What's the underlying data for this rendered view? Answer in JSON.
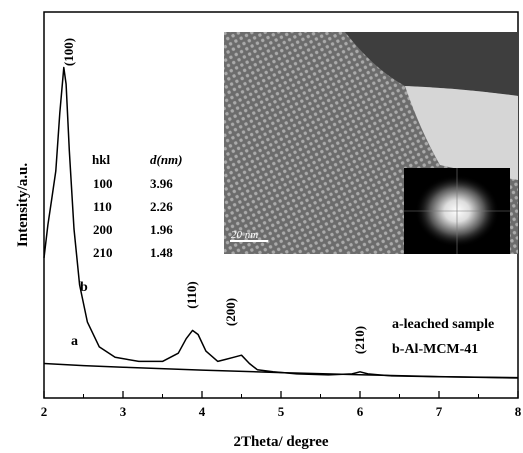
{
  "chart_data": {
    "type": "line",
    "xlabel": "2Theta/ degree",
    "ylabel": "Intensity/a.u.",
    "xlim": [
      2,
      8
    ],
    "x_ticks": [
      "2",
      "3",
      "4",
      "5",
      "6",
      "7",
      "8"
    ],
    "y_ticks_labeled": false,
    "grid": false,
    "series": [
      {
        "name": "b",
        "x": [
          2.0,
          2.05,
          2.1,
          2.15,
          2.2,
          2.25,
          2.28,
          2.32,
          2.38,
          2.45,
          2.55,
          2.7,
          2.9,
          3.2,
          3.5,
          3.7,
          3.8,
          3.88,
          3.95,
          4.05,
          4.2,
          4.3,
          4.4,
          4.5,
          4.6,
          4.7,
          4.9,
          5.2,
          5.6,
          5.9,
          6.0,
          6.1,
          6.4,
          7.0,
          8.0
        ],
        "y": [
          58,
          74,
          87,
          100,
          128,
          150,
          142,
          110,
          72,
          45,
          27,
          15,
          10,
          8,
          8,
          12,
          19,
          23,
          21,
          13,
          8,
          9,
          10,
          11,
          7,
          4,
          3,
          2,
          1.5,
          2,
          3,
          2,
          1,
          0.6,
          0.2
        ]
      },
      {
        "name": "a",
        "x": [
          2.0,
          2.5,
          3.0,
          4.0,
          5.0,
          6.0,
          7.0,
          8.0
        ],
        "y": [
          7,
          6,
          5.2,
          3.8,
          2.6,
          1.6,
          0.7,
          0
        ]
      }
    ],
    "peak_labels": [
      "(100)",
      "(110)",
      "(200)",
      "(210)"
    ],
    "curve_labels": [
      "b",
      "a"
    ],
    "legend": [
      "a-leached sample",
      "b-Al-MCM-41"
    ],
    "hkl_table": {
      "headers": [
        "hkl",
        "d(nm)"
      ],
      "rows": [
        [
          "100",
          "3.96"
        ],
        [
          "110",
          "2.26"
        ],
        [
          "200",
          "1.96"
        ],
        [
          "210",
          "1.48"
        ]
      ]
    },
    "inset": {
      "description_type": "TEM micrograph with FFT inset",
      "scale_label": "20 nm"
    }
  }
}
